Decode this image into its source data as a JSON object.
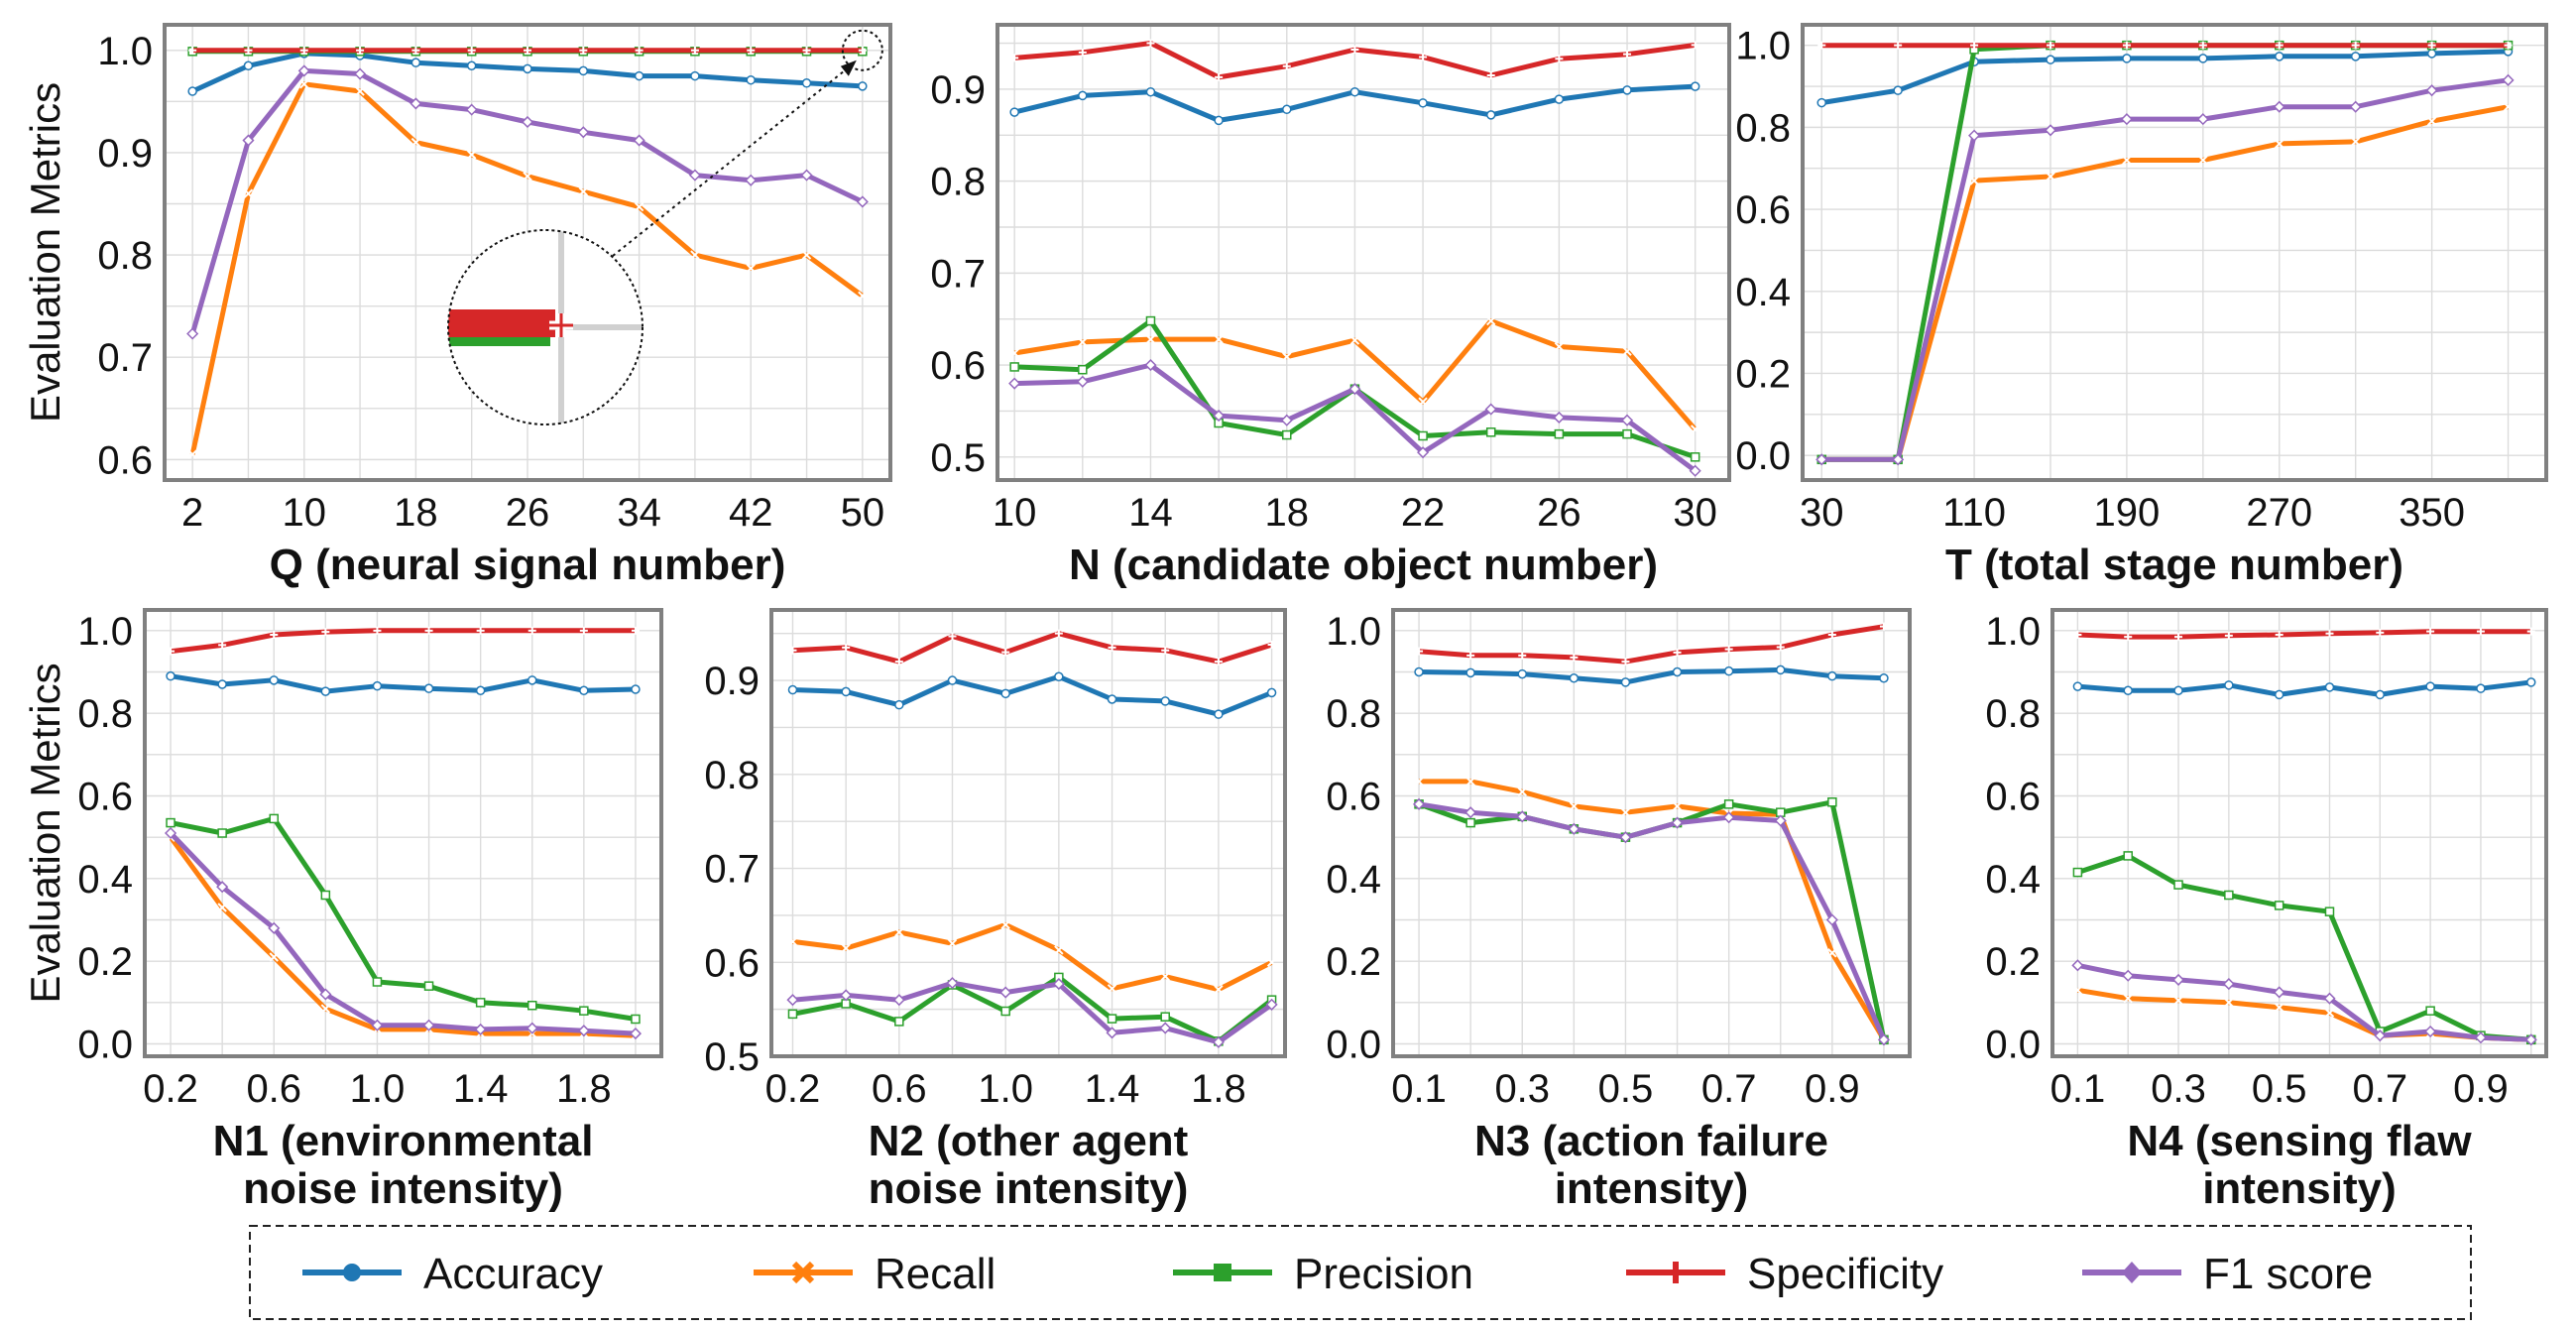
{
  "chart_data": [
    {
      "type": "line",
      "xlabel": "Q (neural signal number)",
      "ylabel": "Evaluation Metrics",
      "x": [
        2,
        6,
        10,
        14,
        18,
        22,
        26,
        30,
        34,
        38,
        42,
        46,
        50
      ],
      "xticks": [
        2,
        10,
        18,
        26,
        34,
        42,
        50
      ],
      "xlim": [
        0,
        52
      ],
      "yticks": [
        0.6,
        0.7,
        0.8,
        0.9,
        1.0
      ],
      "ytick_labels": [
        "0.6",
        "0.7",
        "0.8",
        "0.9",
        "1.0"
      ],
      "ylim": [
        0.58,
        1.025
      ],
      "grid": true,
      "series": [
        {
          "name": "Accuracy",
          "values": [
            0.96,
            0.985,
            0.997,
            0.995,
            0.988,
            0.985,
            0.982,
            0.98,
            0.975,
            0.975,
            0.971,
            0.968,
            0.965
          ]
        },
        {
          "name": "Recall",
          "values": [
            0.605,
            0.86,
            0.967,
            0.96,
            0.91,
            0.898,
            0.877,
            0.862,
            0.847,
            0.8,
            0.787,
            0.8,
            0.76
          ]
        },
        {
          "name": "Precision",
          "values": [
            0.999,
            0.999,
            0.999,
            0.999,
            0.999,
            0.999,
            0.999,
            0.999,
            0.999,
            0.999,
            0.999,
            0.999,
            0.999
          ]
        },
        {
          "name": "Specificity",
          "values": [
            1.0,
            1.0,
            1.0,
            1.0,
            1.0,
            1.0,
            1.0,
            1.0,
            1.0,
            1.0,
            1.0,
            1.0,
            1.0
          ]
        },
        {
          "name": "F1 score",
          "values": [
            0.723,
            0.912,
            0.98,
            0.977,
            0.948,
            0.942,
            0.93,
            0.92,
            0.912,
            0.878,
            0.873,
            0.878,
            0.852
          ]
        }
      ],
      "annotations": [
        "zoom-inset"
      ]
    },
    {
      "type": "line",
      "xlabel": "N (candidate object number)",
      "x": [
        10,
        12,
        14,
        16,
        18,
        20,
        22,
        24,
        26,
        28,
        30
      ],
      "xticks": [
        10,
        14,
        18,
        22,
        26,
        30
      ],
      "xlim": [
        9.5,
        31
      ],
      "yticks": [
        0.5,
        0.6,
        0.7,
        0.8,
        0.9
      ],
      "ytick_labels": [
        "0.5",
        "0.6",
        "0.7",
        "0.8",
        "0.9"
      ],
      "ylim": [
        0.475,
        0.97
      ],
      "grid": true,
      "series": [
        {
          "name": "Accuracy",
          "values": [
            0.875,
            0.893,
            0.897,
            0.866,
            0.878,
            0.897,
            0.885,
            0.872,
            0.889,
            0.899,
            0.903
          ]
        },
        {
          "name": "Recall",
          "values": [
            0.613,
            0.625,
            0.628,
            0.628,
            0.609,
            0.627,
            0.56,
            0.648,
            0.62,
            0.615,
            0.53
          ]
        },
        {
          "name": "Precision",
          "values": [
            0.598,
            0.595,
            0.648,
            0.537,
            0.524,
            0.574,
            0.523,
            0.527,
            0.525,
            0.525,
            0.5
          ]
        },
        {
          "name": "Specificity",
          "values": [
            0.934,
            0.94,
            0.95,
            0.913,
            0.925,
            0.943,
            0.935,
            0.915,
            0.933,
            0.938,
            0.948
          ]
        },
        {
          "name": "F1 score",
          "values": [
            0.58,
            0.582,
            0.6,
            0.545,
            0.54,
            0.574,
            0.505,
            0.552,
            0.543,
            0.54,
            0.485
          ]
        }
      ]
    },
    {
      "type": "line",
      "xlabel": "T (total stage number)",
      "x": [
        30,
        70,
        110,
        150,
        190,
        230,
        270,
        310,
        350,
        390
      ],
      "xticks": [
        30,
        110,
        190,
        270,
        350
      ],
      "xlim": [
        20,
        410
      ],
      "yticks": [
        0.0,
        0.2,
        0.4,
        0.6,
        0.8,
        1.0
      ],
      "ytick_labels": [
        "0.0",
        "0.2",
        "0.4",
        "0.6",
        "0.8",
        "1.0"
      ],
      "ylim": [
        -0.06,
        1.05
      ],
      "grid": true,
      "series": [
        {
          "name": "Accuracy",
          "values": [
            0.86,
            0.89,
            0.96,
            0.965,
            0.968,
            0.968,
            0.973,
            0.973,
            0.98,
            0.985
          ]
        },
        {
          "name": "Recall",
          "values": [
            -0.01,
            -0.01,
            0.67,
            0.68,
            0.72,
            0.72,
            0.76,
            0.765,
            0.815,
            0.85
          ]
        },
        {
          "name": "Precision",
          "values": [
            -0.01,
            -0.01,
            0.99,
            1.0,
            1.0,
            1.0,
            1.0,
            1.0,
            1.0,
            1.0
          ]
        },
        {
          "name": "Specificity",
          "values": [
            1.0,
            1.0,
            1.0,
            1.0,
            1.0,
            1.0,
            1.0,
            1.0,
            1.0,
            1.0
          ]
        },
        {
          "name": "F1 score",
          "values": [
            -0.01,
            -0.01,
            0.78,
            0.793,
            0.82,
            0.82,
            0.85,
            0.85,
            0.89,
            0.915
          ]
        }
      ]
    },
    {
      "type": "line",
      "xlabel": "N1 (environmental noise intensity)",
      "xlabel_lines": [
        "N1 (environmental",
        "noise intensity)"
      ],
      "ylabel": "Evaluation Metrics",
      "x": [
        0.2,
        0.4,
        0.6,
        0.8,
        1.0,
        1.2,
        1.4,
        1.6,
        1.8,
        2.0
      ],
      "xticks": [
        0.2,
        0.6,
        1.0,
        1.4,
        1.8
      ],
      "xtick_labels": [
        "0.2",
        "0.6",
        "1.0",
        "1.4",
        "1.8"
      ],
      "xlim": [
        0.1,
        2.1
      ],
      "yticks": [
        0.0,
        0.2,
        0.4,
        0.6,
        0.8,
        1.0
      ],
      "ytick_labels": [
        "0.0",
        "0.2",
        "0.4",
        "0.6",
        "0.8",
        "1.0"
      ],
      "ylim": [
        -0.03,
        1.05
      ],
      "grid": true,
      "series": [
        {
          "name": "Accuracy",
          "values": [
            0.89,
            0.87,
            0.88,
            0.853,
            0.866,
            0.86,
            0.855,
            0.88,
            0.855,
            0.858
          ]
        },
        {
          "name": "Recall",
          "values": [
            0.5,
            0.33,
            0.21,
            0.085,
            0.035,
            0.035,
            0.025,
            0.025,
            0.025,
            0.02
          ]
        },
        {
          "name": "Precision",
          "values": [
            0.535,
            0.51,
            0.545,
            0.36,
            0.15,
            0.14,
            0.1,
            0.093,
            0.08,
            0.06
          ]
        },
        {
          "name": "Specificity",
          "values": [
            0.95,
            0.965,
            0.99,
            0.997,
            1.0,
            1.0,
            1.0,
            1.0,
            1.0,
            1.0
          ]
        },
        {
          "name": "F1 score",
          "values": [
            0.51,
            0.38,
            0.28,
            0.12,
            0.045,
            0.045,
            0.035,
            0.038,
            0.032,
            0.025
          ]
        }
      ]
    },
    {
      "type": "line",
      "xlabel": "N2 (other agent noise intensity)",
      "xlabel_lines": [
        "N2 (other agent",
        "noise intensity)"
      ],
      "x": [
        0.2,
        0.4,
        0.6,
        0.8,
        1.0,
        1.2,
        1.4,
        1.6,
        1.8,
        2.0
      ],
      "xticks": [
        0.2,
        0.6,
        1.0,
        1.4,
        1.8
      ],
      "xtick_labels": [
        "0.2",
        "0.6",
        "1.0",
        "1.4",
        "1.8"
      ],
      "xlim": [
        0.12,
        2.05
      ],
      "yticks": [
        0.5,
        0.6,
        0.7,
        0.8,
        0.9
      ],
      "ytick_labels": [
        "0.5",
        "0.6",
        "0.7",
        "0.8",
        "0.9"
      ],
      "ylim": [
        0.5,
        0.975
      ],
      "grid": true,
      "series": [
        {
          "name": "Accuracy",
          "values": [
            0.89,
            0.888,
            0.874,
            0.9,
            0.886,
            0.904,
            0.88,
            0.878,
            0.864,
            0.887
          ]
        },
        {
          "name": "Recall",
          "values": [
            0.622,
            0.615,
            0.632,
            0.62,
            0.64,
            0.613,
            0.572,
            0.585,
            0.571,
            0.6
          ]
        },
        {
          "name": "Precision",
          "values": [
            0.545,
            0.556,
            0.537,
            0.576,
            0.548,
            0.584,
            0.54,
            0.542,
            0.516,
            0.56
          ]
        },
        {
          "name": "Specificity",
          "values": [
            0.932,
            0.935,
            0.92,
            0.947,
            0.93,
            0.95,
            0.935,
            0.932,
            0.92,
            0.938
          ]
        },
        {
          "name": "F1 score",
          "values": [
            0.56,
            0.565,
            0.56,
            0.578,
            0.568,
            0.577,
            0.525,
            0.53,
            0.515,
            0.555
          ]
        }
      ]
    },
    {
      "type": "line",
      "xlabel": "N3 (action failure intensity)",
      "xlabel_lines": [
        "N3 (action failure",
        "intensity)"
      ],
      "x": [
        0.1,
        0.2,
        0.3,
        0.4,
        0.5,
        0.6,
        0.7,
        0.8,
        0.9,
        1.0
      ],
      "xticks": [
        0.1,
        0.3,
        0.5,
        0.7,
        0.9
      ],
      "xtick_labels": [
        "0.1",
        "0.3",
        "0.5",
        "0.7",
        "0.9"
      ],
      "xlim": [
        0.05,
        1.05
      ],
      "yticks": [
        0.0,
        0.2,
        0.4,
        0.6,
        0.8,
        1.0
      ],
      "ytick_labels": [
        "0.0",
        "0.2",
        "0.4",
        "0.6",
        "0.8",
        "1.0"
      ],
      "ylim": [
        -0.03,
        1.05
      ],
      "grid": true,
      "series": [
        {
          "name": "Accuracy",
          "values": [
            0.9,
            0.898,
            0.895,
            0.885,
            0.875,
            0.9,
            0.902,
            0.905,
            0.89,
            0.885
          ]
        },
        {
          "name": "Recall",
          "values": [
            0.635,
            0.635,
            0.61,
            0.575,
            0.56,
            0.575,
            0.558,
            0.555,
            0.22,
            0.01
          ]
        },
        {
          "name": "Precision",
          "values": [
            0.58,
            0.535,
            0.55,
            0.52,
            0.5,
            0.535,
            0.58,
            0.56,
            0.585,
            0.01
          ]
        },
        {
          "name": "Specificity",
          "values": [
            0.95,
            0.94,
            0.94,
            0.935,
            0.925,
            0.947,
            0.955,
            0.96,
            0.99,
            1.01
          ]
        },
        {
          "name": "F1 score",
          "values": [
            0.58,
            0.56,
            0.55,
            0.52,
            0.5,
            0.535,
            0.548,
            0.54,
            0.3,
            0.01
          ]
        }
      ]
    },
    {
      "type": "line",
      "xlabel": "N4 (sensing flaw intensity)",
      "xlabel_lines": [
        "N4 (sensing flaw",
        "intensity)"
      ],
      "x": [
        0.1,
        0.2,
        0.3,
        0.4,
        0.5,
        0.6,
        0.7,
        0.8,
        0.9,
        1.0
      ],
      "xticks": [
        0.1,
        0.3,
        0.5,
        0.7,
        0.9
      ],
      "xtick_labels": [
        "0.1",
        "0.3",
        "0.5",
        "0.7",
        "0.9"
      ],
      "xlim": [
        0.05,
        1.03
      ],
      "yticks": [
        0.0,
        0.2,
        0.4,
        0.6,
        0.8,
        1.0
      ],
      "ytick_labels": [
        "0.0",
        "0.2",
        "0.4",
        "0.6",
        "0.8",
        "1.0"
      ],
      "ylim": [
        -0.03,
        1.05
      ],
      "grid": true,
      "series": [
        {
          "name": "Accuracy",
          "values": [
            0.865,
            0.855,
            0.855,
            0.868,
            0.845,
            0.863,
            0.845,
            0.865,
            0.86,
            0.875
          ]
        },
        {
          "name": "Recall",
          "values": [
            0.13,
            0.11,
            0.105,
            0.1,
            0.088,
            0.075,
            0.02,
            0.025,
            0.015,
            0.01
          ]
        },
        {
          "name": "Precision",
          "values": [
            0.415,
            0.455,
            0.385,
            0.36,
            0.335,
            0.32,
            0.03,
            0.08,
            0.02,
            0.01
          ]
        },
        {
          "name": "Specificity",
          "values": [
            0.99,
            0.985,
            0.985,
            0.988,
            0.99,
            0.993,
            0.995,
            0.998,
            0.998,
            0.998
          ]
        },
        {
          "name": "F1 score",
          "values": [
            0.19,
            0.165,
            0.155,
            0.145,
            0.125,
            0.11,
            0.02,
            0.03,
            0.015,
            0.01
          ]
        }
      ]
    }
  ],
  "legend": {
    "placement": "bottom-center",
    "items": [
      "Accuracy",
      "Recall",
      "Precision",
      "Specificity",
      "F1 score"
    ]
  },
  "colors": {
    "Accuracy": "#1f77b4",
    "Recall": "#ff7f0e",
    "Precision": "#2ca02c",
    "Specificity": "#d62728",
    "F1 score": "#9467bd"
  },
  "markers": {
    "Accuracy": "circle",
    "Recall": "x",
    "Precision": "square",
    "Specificity": "plus",
    "F1 score": "diamond"
  }
}
